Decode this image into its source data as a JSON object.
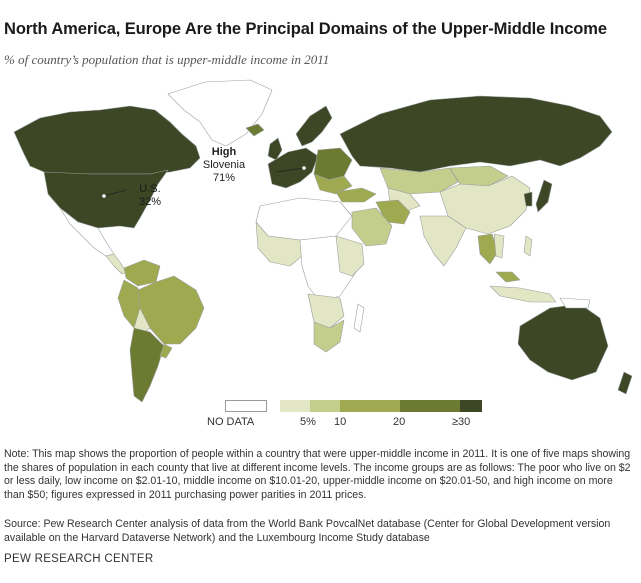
{
  "title": "North America, Europe Are the Principal Domains of the Upper-Middle Income",
  "subtitle": "% of country’s population that is upper-middle income in 2011",
  "callouts": {
    "slovenia": {
      "heading": "High",
      "name": "Slovenia",
      "value": "71%"
    },
    "us": {
      "name": "U.S.",
      "value": "32%"
    }
  },
  "legend": {
    "no_data_label": "NO DATA",
    "ticks": [
      "5%",
      "10",
      "20",
      "≥30"
    ],
    "colors": [
      "#e3e6c4",
      "#c3cd8c",
      "#9fa94f",
      "#6c7a32",
      "#3d4725"
    ]
  },
  "colors": {
    "no_data": "#ffffff",
    "border": "#9aa0a0"
  },
  "note": "Note: This map shows the proportion of people within a country that were upper-middle income in 2011. It is one of five maps showing the shares of population in each county that live at different income levels. The income groups are as follows: The poor who live on $2 or less daily, low income on $2.01-10, middle income on $10.01-20, upper-middle income on $20.01-50, and high income on more than $50; figures expressed in 2011 purchasing power parities in 2011 prices.",
  "source": "Source: Pew Research Center analysis of data from the World Bank PovcalNet database (Center for Global Development version available on the Harvard Dataverse Network) and the Luxembourg Income Study database",
  "brand": "PEW RESEARCH CENTER"
}
